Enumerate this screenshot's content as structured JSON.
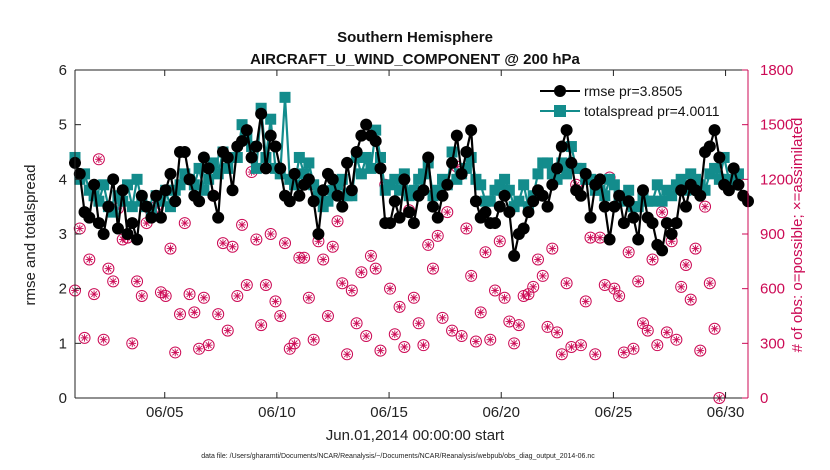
{
  "chart_data": {
    "type": "line",
    "title_line1": "Southern Hemisphere",
    "title_line2": "AIRCRAFT_U_WIND_COMPONENT @ 200 hPa",
    "xlabel": "Jun.01,2014 00:00:00 start",
    "ylabel_left": "rmse and totalspread",
    "ylabel_right": "# of obs: o=possible; ×=assimilated",
    "footnote": "data file: /Users/gharamti/Documents/NCAR/Reanalysis/~/Documents/NCAR/Reanalysis/webpub/obs_diag_output_2014-06.nc",
    "x_ticks": [
      "06/05",
      "06/10",
      "06/15",
      "06/20",
      "06/25",
      "06/30"
    ],
    "x_tick_days": [
      5,
      10,
      15,
      20,
      25,
      30
    ],
    "xlim_days": [
      1,
      31
    ],
    "ylim_left": [
      0,
      6
    ],
    "yticks_left": [
      "0",
      "1",
      "2",
      "3",
      "4",
      "5",
      "6"
    ],
    "ylim_right": [
      0,
      1800
    ],
    "yticks_right": [
      "0",
      "300",
      "600",
      "900",
      "1200",
      "1500",
      "1800"
    ],
    "legend_position": "top-right",
    "grid": false,
    "colors": {
      "rmse": "#000000",
      "totalspread": "#138c8c",
      "obs": "#cc0a55"
    },
    "series": [
      {
        "name": "rmse pr=3.8505",
        "marker": "circle",
        "values": [
          4.3,
          4.1,
          3.4,
          3.3,
          3.9,
          3.2,
          3.0,
          3.5,
          4.0,
          3.1,
          3.8,
          3.0,
          3.2,
          2.9,
          3.7,
          3.5,
          3.3,
          3.7,
          3.3,
          3.8,
          4.1,
          3.6,
          4.5,
          4.5,
          4.0,
          3.7,
          3.6,
          4.4,
          4.2,
          3.7,
          3.3,
          4.5,
          4.4,
          3.8,
          4.6,
          4.7,
          4.9,
          4.4,
          4.6,
          5.2,
          4.2,
          4.8,
          4.6,
          4.2,
          3.7,
          3.6,
          4.1,
          3.7,
          3.9,
          4.0,
          3.6,
          3.0,
          3.8,
          4.1,
          4.0,
          3.7,
          3.5,
          4.3,
          3.8,
          4.5,
          4.8,
          5.0,
          4.8,
          4.7,
          4.2,
          3.2,
          3.2,
          3.6,
          3.3,
          4.0,
          3.4,
          3.2,
          3.7,
          3.8,
          4.4,
          3.5,
          3.3,
          3.7,
          3.9,
          4.3,
          4.8,
          4.1,
          4.5,
          4.9,
          3.6,
          3.3,
          3.4,
          3.2,
          3.2,
          3.5,
          3.7,
          3.4,
          2.6,
          3.0,
          3.1,
          3.4,
          3.6,
          3.8,
          3.7,
          3.5,
          3.9,
          4.2,
          4.6,
          4.9,
          4.3,
          3.8,
          3.7,
          4.1,
          3.3,
          3.9,
          4.0,
          3.5,
          2.9,
          3.5,
          3.7,
          3.2,
          3.6,
          3.3,
          2.9,
          3.8,
          3.3,
          3.2,
          2.8,
          2.7,
          3.2,
          3.0,
          3.2,
          3.8,
          3.5,
          3.9,
          3.8,
          3.7,
          4.5,
          4.6,
          4.9,
          4.4,
          3.9,
          3.8,
          4.2,
          3.9,
          3.7,
          3.6
        ]
      },
      {
        "name": "totalspread pr=4.0011",
        "marker": "square",
        "values": [
          4.4,
          4.0,
          4.1,
          3.8,
          3.7,
          3.6,
          3.9,
          3.5,
          3.4,
          3.7,
          3.6,
          3.9,
          3.5,
          4.0,
          3.6,
          3.5,
          3.4,
          3.7,
          3.6,
          3.8,
          3.5,
          3.8,
          3.9,
          4.1,
          4.0,
          3.9,
          4.2,
          3.8,
          4.0,
          4.3,
          4.1,
          4.5,
          4.2,
          4.4,
          4.4,
          5.0,
          4.8,
          4.6,
          4.2,
          5.3,
          4.4,
          5.1,
          4.2,
          4.1,
          5.5,
          4.0,
          3.9,
          4.4,
          4.1,
          4.3,
          3.9,
          3.7,
          3.5,
          3.6,
          3.8,
          3.9,
          4.0,
          3.7,
          3.7,
          4.4,
          4.1,
          4.4,
          4.2,
          4.9,
          4.4,
          3.8,
          3.9,
          4.0,
          3.8,
          4.1,
          3.7,
          3.8,
          4.0,
          4.1,
          4.3,
          3.7,
          3.8,
          4.0,
          3.9,
          4.5,
          4.0,
          4.1,
          4.2,
          4.4,
          4.0,
          3.9,
          3.6,
          3.6,
          3.8,
          3.9,
          4.0,
          3.8,
          3.5,
          3.6,
          3.9,
          3.5,
          3.7,
          4.1,
          4.3,
          4.3,
          4.1,
          4.0,
          4.3,
          4.1,
          4.6,
          4.2,
          4.2,
          4.0,
          4.0,
          3.8,
          3.8,
          3.7,
          4.0,
          3.9,
          3.7,
          3.6,
          3.8,
          3.5,
          3.5,
          3.7,
          3.6,
          3.6,
          3.9,
          3.6,
          3.8,
          3.7,
          3.9,
          4.0,
          3.8,
          4.1,
          4.0,
          3.9,
          3.8,
          4.1,
          4.2,
          4.0,
          4.4,
          4.0,
          3.9,
          4.1
        ]
      },
      {
        "name": "obs possible",
        "marker": "circle-open",
        "axis": "right",
        "values": [
          590,
          930,
          330,
          760,
          570,
          1310,
          320,
          710,
          640,
          1040,
          870,
          880,
          300,
          640,
          560,
          960,
          1020,
          1050,
          580,
          560,
          820,
          250,
          460,
          960,
          570,
          470,
          270,
          550,
          290,
          1110,
          460,
          850,
          370,
          830,
          560,
          950,
          620,
          1240,
          870,
          400,
          620,
          900,
          530,
          450,
          850,
          270,
          300,
          770,
          770,
          550,
          320,
          860,
          760,
          450,
          830,
          970,
          630,
          240,
          590,
          410,
          690,
          340,
          780,
          710,
          260,
          1170,
          600,
          350,
          500,
          280,
          1030,
          550,
          410,
          290,
          840,
          710,
          890,
          440,
          1020,
          370,
          1270,
          340,
          930,
          670,
          310,
          470,
          800,
          320,
          590,
          860,
          550,
          420,
          300,
          400,
          560,
          570,
          610,
          760,
          670,
          390,
          820,
          360,
          240,
          630,
          280,
          1170,
          290,
          530,
          880,
          240,
          880,
          620,
          1210,
          600,
          560,
          250,
          800,
          270,
          640,
          410,
          370,
          760,
          290,
          1020,
          360,
          860,
          320,
          610,
          730,
          540,
          820,
          260,
          1050,
          630,
          380,
          0
        ]
      }
    ]
  }
}
